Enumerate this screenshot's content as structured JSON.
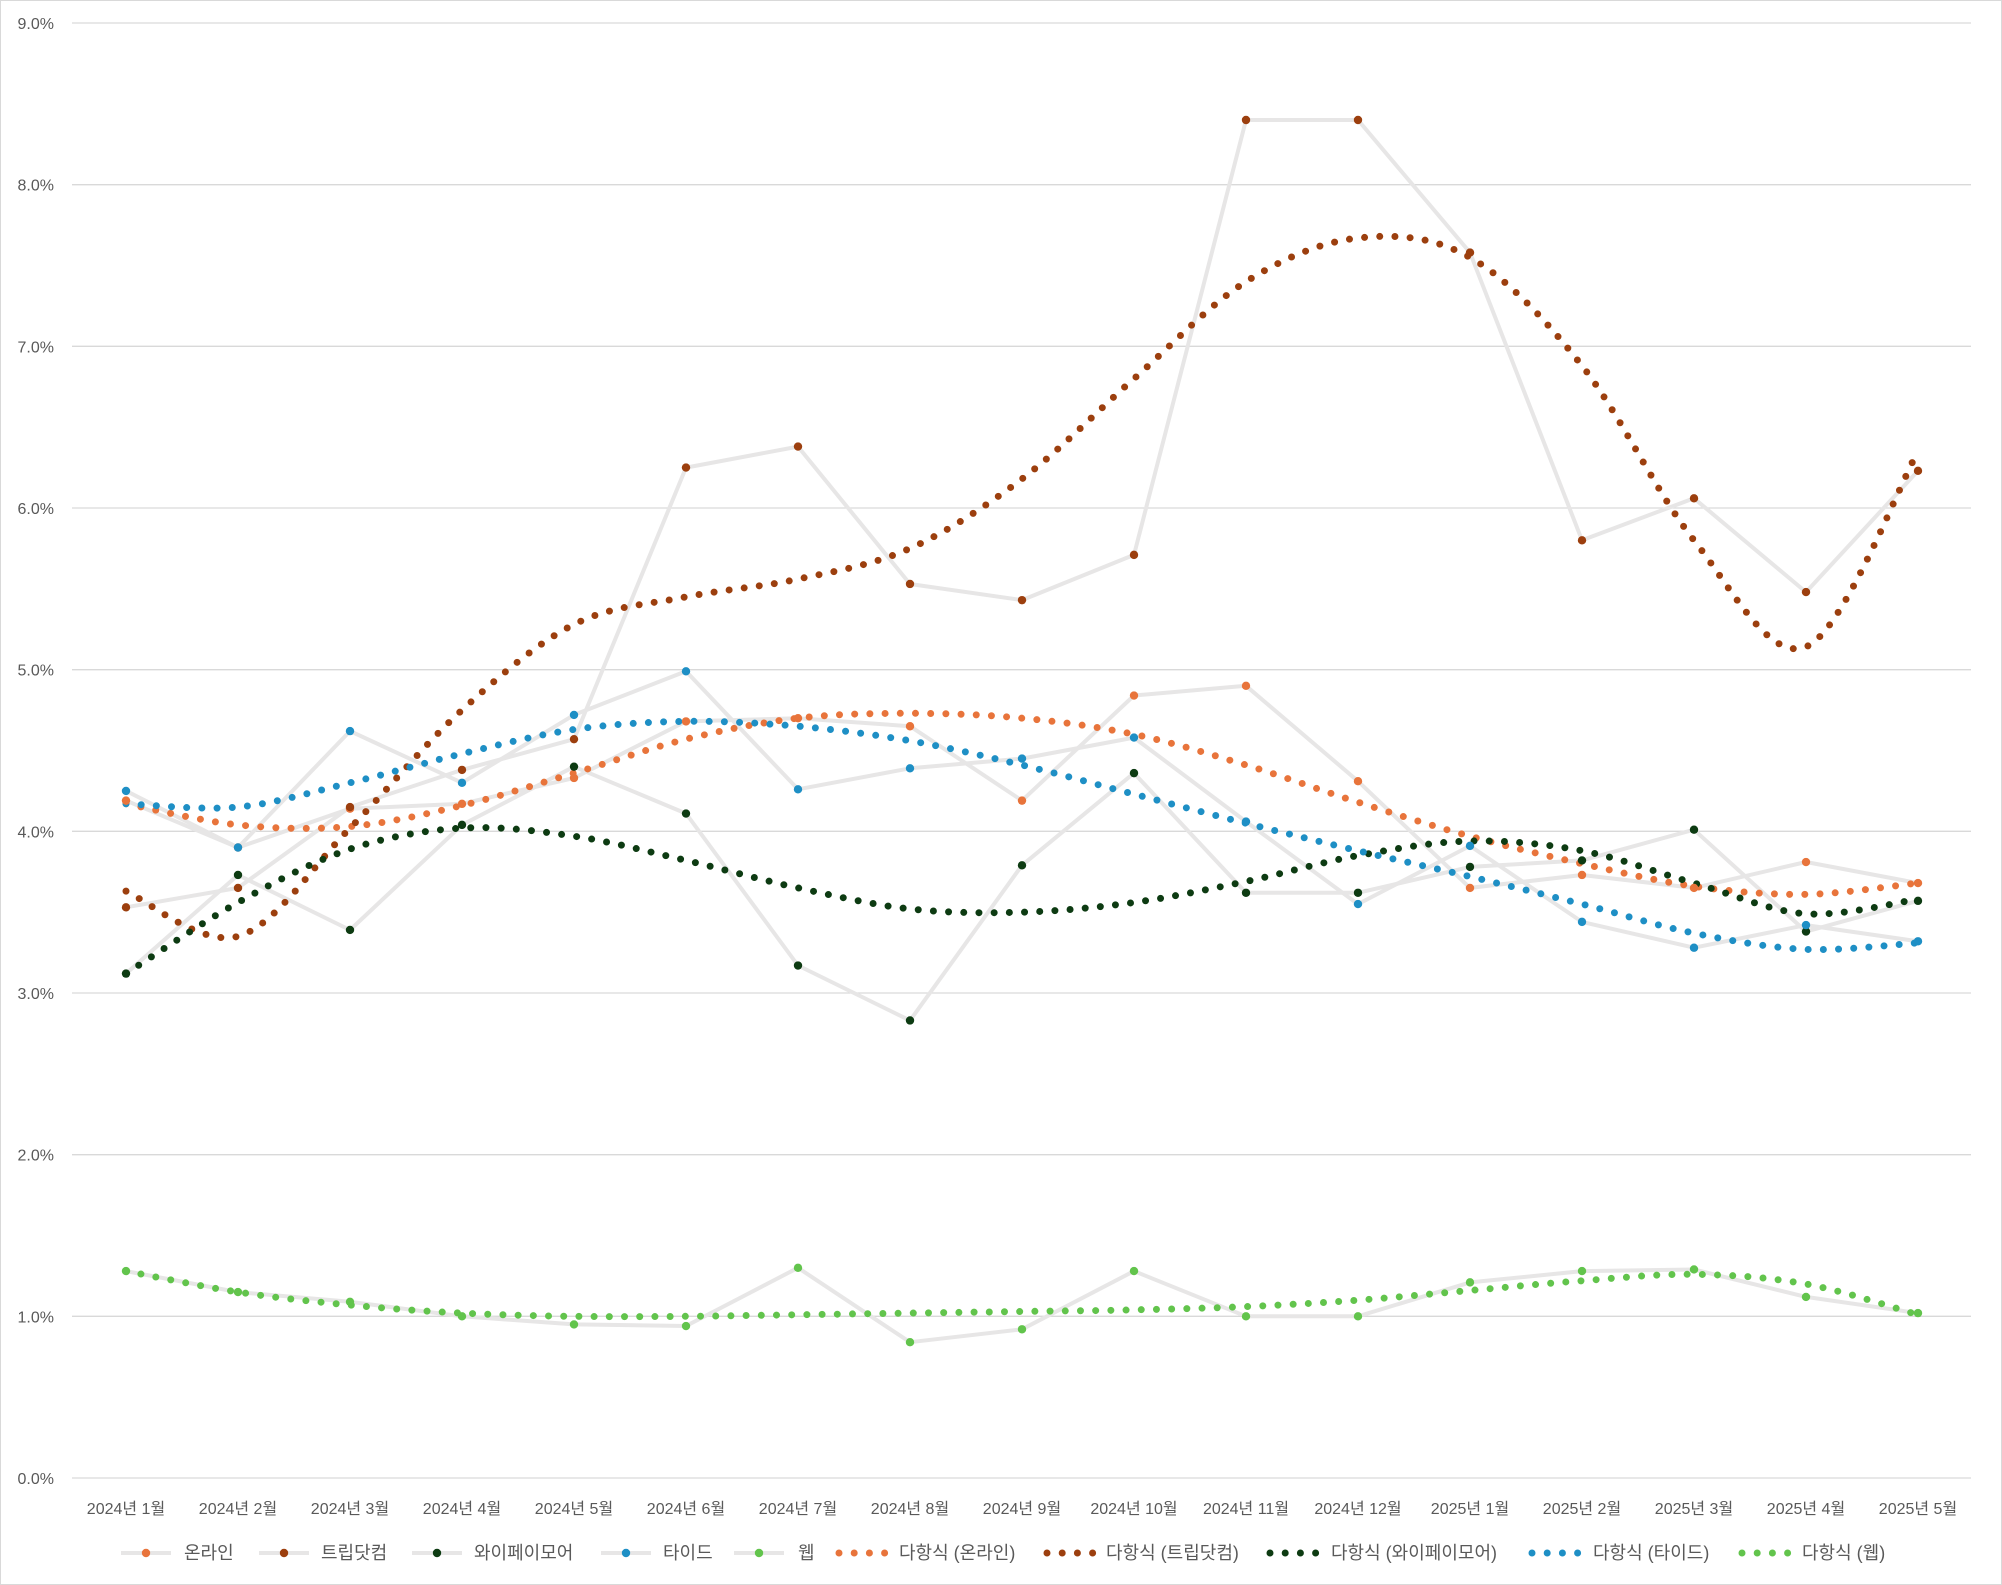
{
  "chart_data": {
    "type": "line",
    "title": "",
    "xlabel": "",
    "ylabel": "",
    "ylim": [
      0,
      0.09
    ],
    "y_tick_format": "percent_1dp",
    "y_ticks": [
      {
        "value": 0.0,
        "label": "0.0%"
      },
      {
        "value": 0.01,
        "label": "1.0%"
      },
      {
        "value": 0.02,
        "label": "2.0%"
      },
      {
        "value": 0.03,
        "label": "3.0%"
      },
      {
        "value": 0.04,
        "label": "4.0%"
      },
      {
        "value": 0.05,
        "label": "5.0%"
      },
      {
        "value": 0.06,
        "label": "6.0%"
      },
      {
        "value": 0.07,
        "label": "7.0%"
      },
      {
        "value": 0.08,
        "label": "8.0%"
      },
      {
        "value": 0.09,
        "label": "9.0%"
      }
    ],
    "categories": [
      "2024년 1월",
      "2024년 2월",
      "2024년 3월",
      "2024년 4월",
      "2024년 5월",
      "2024년 6월",
      "2024년 7월",
      "2024년 8월",
      "2024년 9월",
      "2024년 10월",
      "2024년 11월",
      "2024년 12월",
      "2025년 1월",
      "2025년 2월",
      "2025년 3월",
      "2025년 4월",
      "2025년 5월"
    ],
    "grid": true,
    "legend_position": "bottom",
    "series": [
      {
        "name": "온라인",
        "color": "#E8743B",
        "line_color": "#E7E6E6",
        "style": "line-markers",
        "values": [
          0.0419,
          0.039,
          0.0414,
          0.0417,
          0.0433,
          0.0468,
          0.047,
          0.0465,
          0.0419,
          0.0484,
          0.049,
          0.0431,
          0.0365,
          0.0373,
          0.0365,
          0.0381,
          0.0368
        ]
      },
      {
        "name": "트립닷컴",
        "color": "#9C3F0E",
        "line_color": "#E7E6E6",
        "style": "line-markers",
        "values": [
          0.0353,
          0.0365,
          0.0415,
          0.0438,
          0.0457,
          0.0625,
          0.0638,
          0.0553,
          0.0543,
          0.0571,
          0.084,
          0.084,
          0.0758,
          0.058,
          0.0606,
          0.0548,
          0.0623
        ]
      },
      {
        "name": "와이페이모어",
        "color": "#0D3B12",
        "line_color": "#E7E6E6",
        "style": "line-markers",
        "values": [
          0.0312,
          0.0373,
          0.0339,
          0.0404,
          0.044,
          0.0411,
          0.0317,
          0.0283,
          0.0379,
          0.0436,
          0.0362,
          0.0362,
          0.0378,
          0.0382,
          0.0401,
          0.0338,
          0.0357
        ]
      },
      {
        "name": "타이드",
        "color": "#1E8FC5",
        "line_color": "#E7E6E6",
        "style": "line-markers",
        "values": [
          0.0425,
          0.039,
          0.0462,
          0.043,
          0.0472,
          0.0499,
          0.0426,
          0.0439,
          0.0445,
          0.0458,
          0.0406,
          0.0355,
          0.0391,
          0.0344,
          0.0328,
          0.0342,
          0.0332
        ]
      },
      {
        "name": "웹",
        "color": "#62C44C",
        "line_color": "#E7E6E6",
        "style": "line-markers",
        "values": [
          0.0128,
          0.0115,
          0.0109,
          0.01,
          0.0095,
          0.0094,
          0.013,
          0.0084,
          0.0092,
          0.0128,
          0.01,
          0.01,
          0.0121,
          0.0128,
          0.0129,
          0.0112,
          0.0102
        ]
      },
      {
        "name": "다항식 (온라인)",
        "color": "#E8743B",
        "style": "dotted-trend",
        "values": [
          0.0417,
          0.0404,
          0.0403,
          0.0416,
          0.0436,
          0.0457,
          0.047,
          0.0473,
          0.047,
          0.046,
          0.0441,
          0.0418,
          0.0397,
          0.038,
          0.0366,
          0.0361,
          0.0368
        ]
      },
      {
        "name": "다항식 (트립닷컴)",
        "color": "#9C3F0E",
        "style": "dotted-trend",
        "values": [
          0.0363,
          0.0335,
          0.0402,
          0.0475,
          0.0528,
          0.0545,
          0.0556,
          0.0575,
          0.0618,
          0.068,
          0.074,
          0.0767,
          0.0755,
          0.0688,
          0.058,
          0.0514,
          0.0635
        ]
      },
      {
        "name": "다항식 (와이페이모어)",
        "color": "#0D3B12",
        "style": "dotted-trend",
        "values": [
          0.0312,
          0.0356,
          0.0389,
          0.0402,
          0.0397,
          0.0382,
          0.0365,
          0.0352,
          0.035,
          0.0356,
          0.0369,
          0.0385,
          0.0394,
          0.0388,
          0.0368,
          0.0349,
          0.0358
        ]
      },
      {
        "name": "다항식 (타이드)",
        "color": "#1E8FC5",
        "style": "dotted-trend",
        "values": [
          0.0417,
          0.0415,
          0.043,
          0.0448,
          0.0463,
          0.0468,
          0.0465,
          0.0456,
          0.0441,
          0.0423,
          0.0405,
          0.0388,
          0.0372,
          0.0355,
          0.0337,
          0.0327,
          0.0331
        ]
      },
      {
        "name": "다항식 (웹)",
        "color": "#62C44C",
        "style": "dotted-trend",
        "values": [
          0.0128,
          0.0115,
          0.0107,
          0.0102,
          0.01,
          0.01,
          0.0101,
          0.0102,
          0.0103,
          0.0104,
          0.0106,
          0.011,
          0.0116,
          0.0122,
          0.0126,
          0.012,
          0.0101
        ]
      }
    ]
  }
}
